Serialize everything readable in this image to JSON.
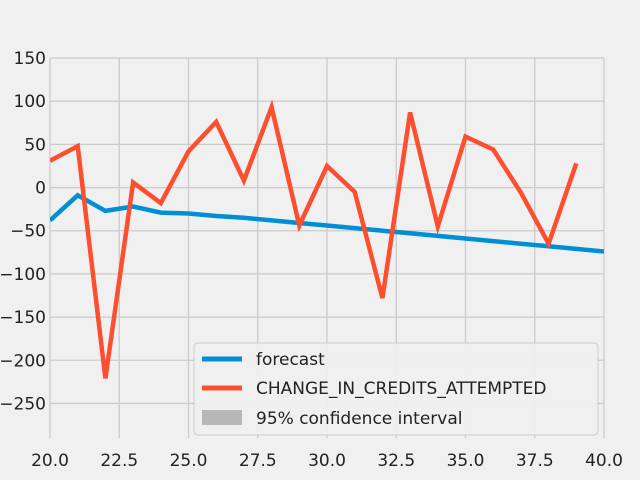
{
  "chart_data": {
    "type": "line",
    "title": "",
    "xlabel": "",
    "ylabel": "",
    "xlim": [
      20.0,
      40.0
    ],
    "ylim": [
      -290,
      150
    ],
    "x_ticks": [
      20.0,
      22.5,
      25.0,
      27.5,
      30.0,
      32.5,
      35.0,
      37.5,
      40.0
    ],
    "x_tick_labels": [
      "20.0",
      "22.5",
      "25.0",
      "27.5",
      "30.0",
      "32.5",
      "35.0",
      "37.5",
      "40.0"
    ],
    "y_ticks": [
      -250,
      -200,
      -150,
      -100,
      -50,
      0,
      50,
      100,
      150
    ],
    "y_tick_labels": [
      "−250",
      "−200",
      "−150",
      "−100",
      "−50",
      "0",
      "50",
      "100",
      "150"
    ],
    "grid": true,
    "legend_position": "lower-right",
    "series": [
      {
        "name": "forecast",
        "color": "#008fd5",
        "x": [
          20,
          21,
          22,
          23,
          24,
          25,
          26,
          27,
          28,
          29,
          30,
          31,
          32,
          33,
          34,
          35,
          36,
          37,
          38,
          39,
          40
        ],
        "values": [
          -38,
          -9,
          -27,
          -22,
          -29,
          -30,
          -33,
          -35,
          -38,
          -41,
          -44,
          -47,
          -50,
          -53,
          -56,
          -59,
          -62,
          -65,
          -68,
          -71,
          -74
        ]
      },
      {
        "name": "CHANGE_IN_CREDITS_ATTEMPTED",
        "color": "#fc4f30",
        "x": [
          20,
          21,
          22,
          23,
          24,
          25,
          26,
          27,
          28,
          29,
          30,
          31,
          32,
          33,
          34,
          35,
          36,
          37,
          38,
          39
        ],
        "values": [
          31,
          48,
          -221,
          6,
          -18,
          42,
          76,
          8,
          93,
          -44,
          25,
          -5,
          -128,
          87,
          -45,
          59,
          44,
          -6,
          -65,
          28
        ]
      }
    ],
    "confidence_interval": {
      "name": "95% confidence interval",
      "color": "#b7b7b7"
    }
  }
}
